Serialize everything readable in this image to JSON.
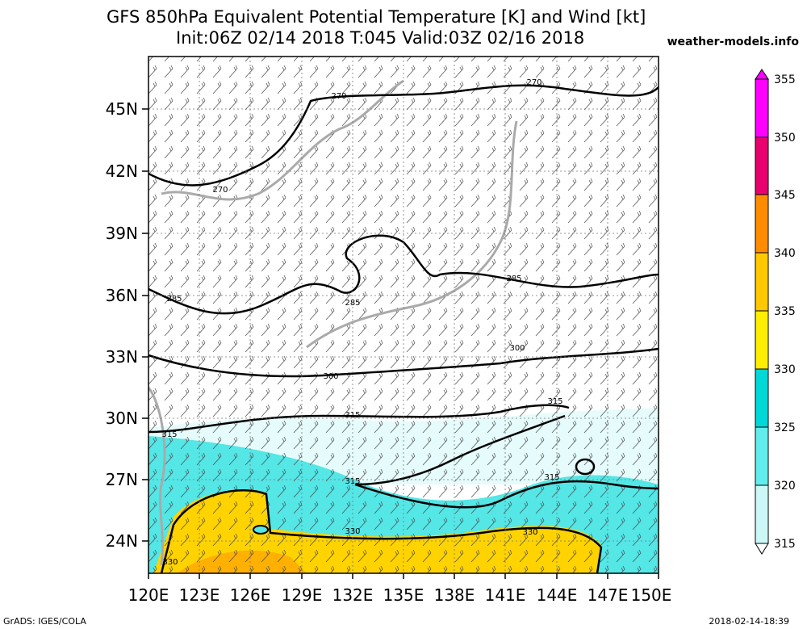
{
  "header": {
    "title_line1": "GFS 850hPa Equivalent Potential Temperature [K] and Wind [kt]",
    "title_line2": "Init:06Z 02/14 2018 T:045 Valid:03Z 02/16 2018",
    "site": "weather-models.info"
  },
  "map": {
    "lat_labels": [
      "45N",
      "42N",
      "39N",
      "36N",
      "33N",
      "30N",
      "27N",
      "24N"
    ],
    "lon_labels": [
      "120E",
      "123E",
      "126E",
      "129E",
      "132E",
      "135E",
      "138E",
      "141E",
      "144E",
      "147E",
      "150E"
    ],
    "contour_labels": [
      "270",
      "270",
      "270",
      "285",
      "285",
      "285",
      "300",
      "300",
      "315",
      "315",
      "315",
      "315",
      "315",
      "330",
      "330",
      "330"
    ]
  },
  "colorbar": {
    "labels": [
      "355",
      "350",
      "345",
      "340",
      "335",
      "330",
      "325",
      "320",
      "315"
    ],
    "colors": [
      "#ff00ff",
      "#e8007e",
      "#ff0000",
      "#ff9d00",
      "#ffd400",
      "#fff200",
      "#00e1e1",
      "#63f0f0",
      "#cef9f9"
    ]
  },
  "footer": {
    "left": "GrADS: IGES/COLA",
    "right": "2018-02-14-18:39"
  }
}
